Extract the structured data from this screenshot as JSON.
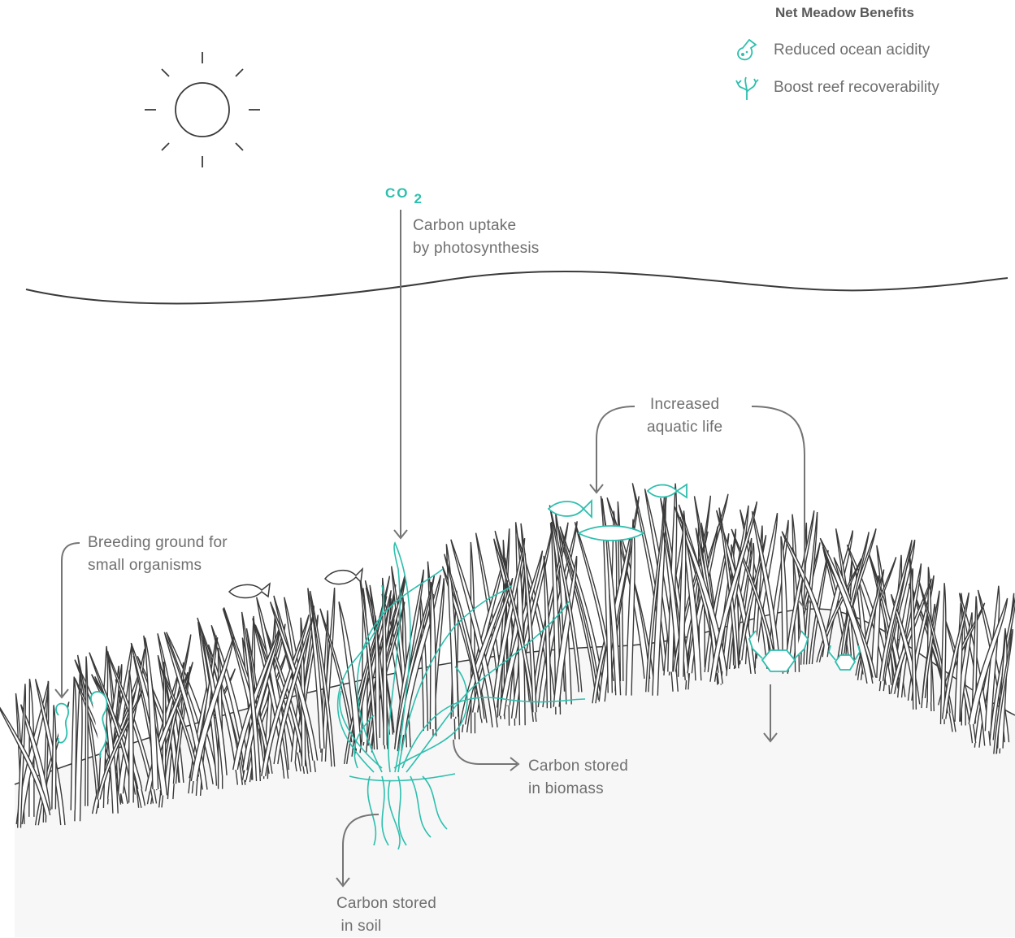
{
  "colors": {
    "accent": "#2dbfae",
    "line": "#3a3a3a",
    "text": "#6f6f6f",
    "seabed": "#f7f7f7"
  },
  "legend": {
    "title": "Net Meadow Benefits",
    "items": [
      {
        "label": "Reduced ocean acidity",
        "icon": "flask-icon"
      },
      {
        "label": "Boost reef recoverability",
        "icon": "coral-icon"
      }
    ]
  },
  "co2": {
    "main": "CO",
    "sub": "2"
  },
  "labels": {
    "carbon_uptake": "Carbon uptake\nby photosynthesis",
    "aquatic_life": "Increased\naquatic life",
    "breeding": "Breeding ground for\nsmall organisms",
    "biomass": "Carbon stored\nin biomass",
    "soil": "Carbon stored\n in soil"
  }
}
